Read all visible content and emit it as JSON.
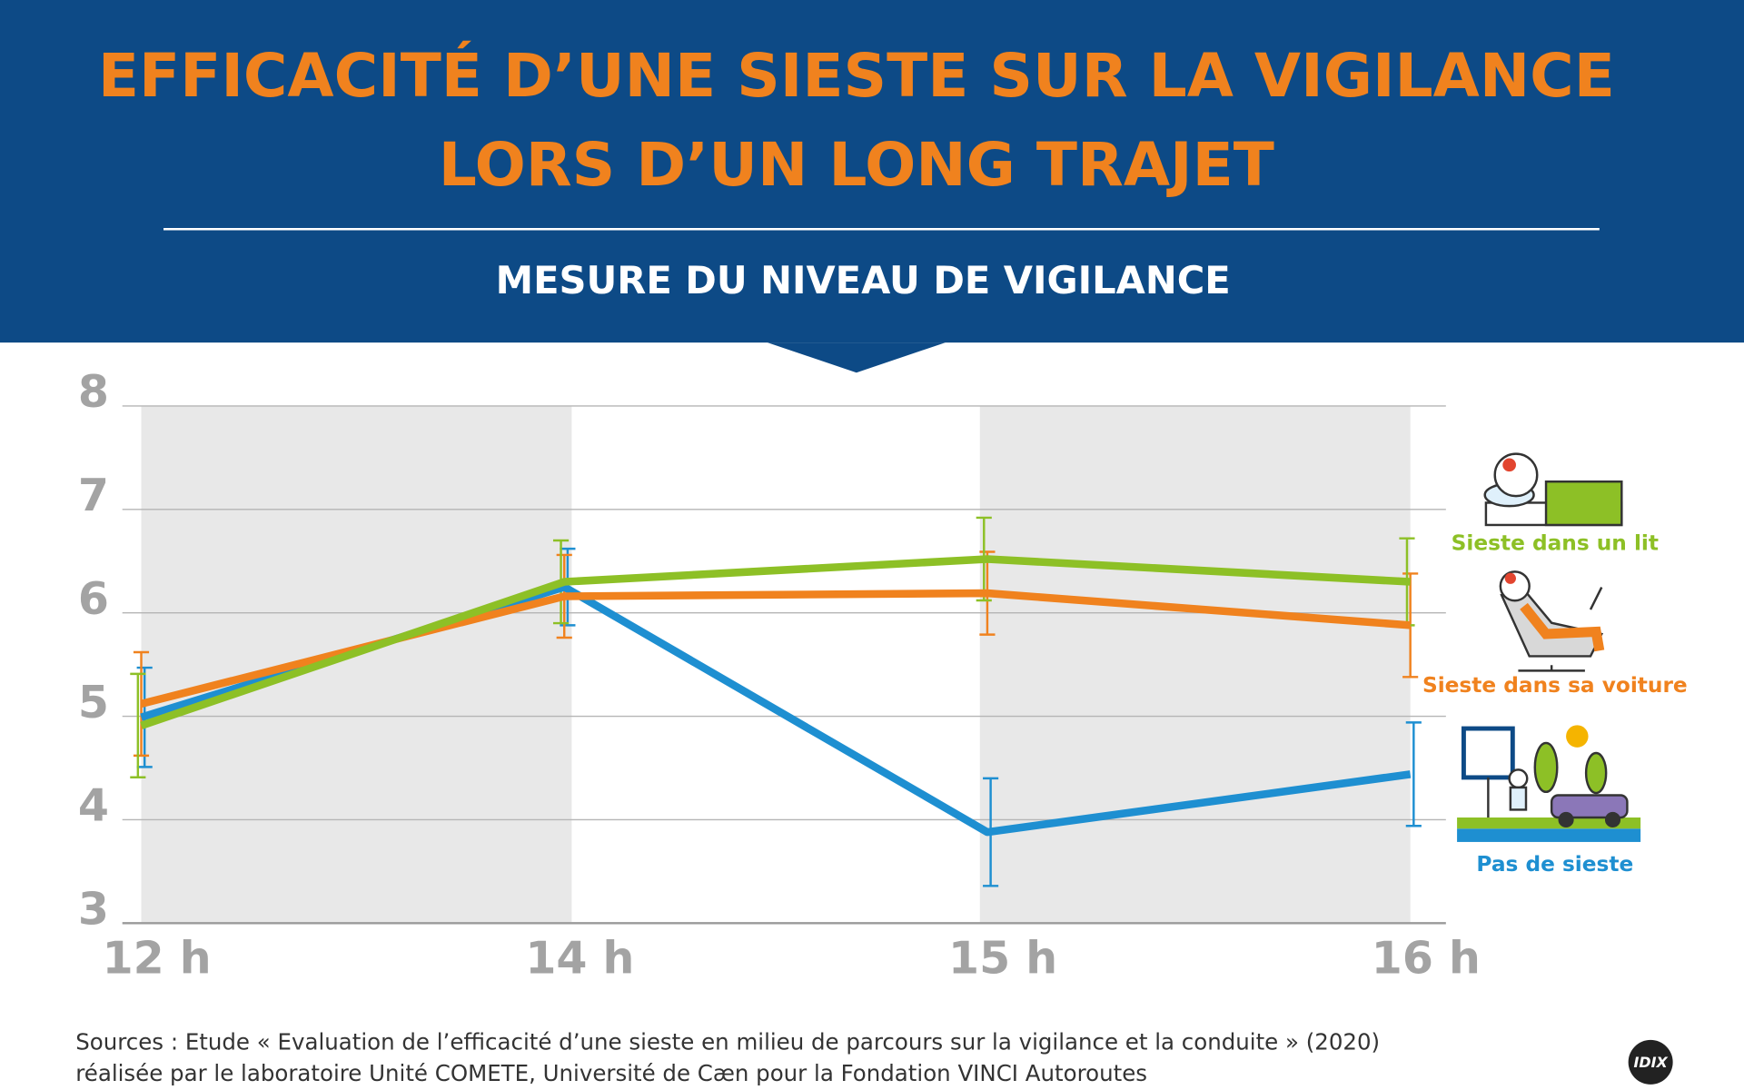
{
  "chart_data": {
    "type": "line",
    "title": [
      "EFFICACITÉ D’UNE SIESTE SUR LA VIGILANCE",
      "LORS D’UN LONG TRAJET"
    ],
    "subtitle": "MESURE DU NIVEAU DE VIGILANCE",
    "categories": [
      "12 h",
      "14 h",
      "15 h",
      "16 h"
    ],
    "ylim": [
      3,
      8
    ],
    "yticks": [
      3,
      4,
      5,
      6,
      7,
      8
    ],
    "grid": true,
    "legend": "right",
    "series": [
      {
        "name": "Sieste dans un lit",
        "color": "#8dc026",
        "values": [
          4.91,
          6.3,
          6.52,
          6.3
        ],
        "errors": [
          0.5,
          0.4,
          0.4,
          0.42
        ]
      },
      {
        "name": "Sieste dans sa voiture",
        "color": "#f0821e",
        "values": [
          5.12,
          6.16,
          6.19,
          5.88
        ],
        "errors": [
          0.5,
          0.4,
          0.4,
          0.5
        ]
      },
      {
        "name": "Pas de sieste",
        "color": "#1e8fd1",
        "values": [
          4.99,
          6.25,
          3.88,
          4.44
        ],
        "errors": [
          0.48,
          0.37,
          0.52,
          0.5
        ]
      }
    ],
    "source": [
      "Sources : Etude « Evaluation de l’efficacité d’une sieste en milieu de parcours sur la vigilance et la conduite » (2020)",
      "réalisée par le laboratoire Unité COMETE, Université de Cæn pour la Fondation VINCI Autoroutes"
    ],
    "logo": "IDIX"
  }
}
